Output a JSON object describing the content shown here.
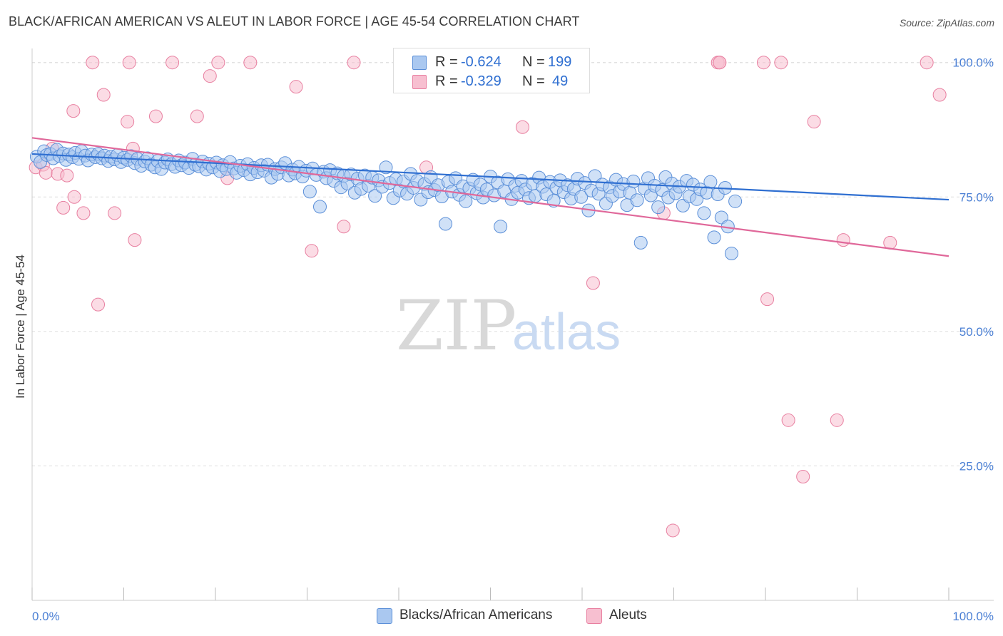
{
  "title": "BLACK/AFRICAN AMERICAN VS ALEUT IN LABOR FORCE | AGE 45-54 CORRELATION CHART",
  "source": "Source: ZipAtlas.com",
  "watermark": {
    "zip": "ZIP",
    "atlas": "atlas"
  },
  "colors": {
    "blue_fill": "#aac8f0",
    "blue_stroke": "#5b8fd8",
    "blue_line": "#2f6fd1",
    "pink_fill": "#f7bfd0",
    "pink_stroke": "#e87fa0",
    "pink_line": "#e0689a",
    "grid": "#dddddd",
    "tick_text": "#4a7fd4"
  },
  "legend_top": [
    {
      "r_label": "R =",
      "r_value": "-0.624",
      "n_label": "N =",
      "n_value": "199",
      "color": "blue"
    },
    {
      "r_label": "R =",
      "r_value": "-0.329",
      "n_label": "N =",
      "n_value": "49",
      "color": "pink"
    }
  ],
  "legend_bottom": [
    {
      "label": "Blacks/African Americans",
      "color": "blue"
    },
    {
      "label": "Aleuts",
      "color": "pink"
    }
  ],
  "chart_data": {
    "type": "scatter",
    "title": "BLACK/AFRICAN AMERICAN VS ALEUT IN LABOR FORCE | AGE 45-54 CORRELATION CHART",
    "xlabel": "",
    "ylabel": "In Labor Force | Age 45-54",
    "xlim": [
      0,
      100
    ],
    "ylim": [
      0,
      105
    ],
    "x_tick_labels": [
      "0.0%",
      "100.0%"
    ],
    "y_tick_labels": [
      "25.0%",
      "50.0%",
      "75.0%",
      "100.0%"
    ],
    "y_ticks": [
      25,
      50,
      75,
      100
    ],
    "grid": true,
    "legend_placement": "top-center and bottom",
    "series": [
      {
        "name": "Blacks/African Americans",
        "color": "blue",
        "r": -0.624,
        "n": 199,
        "trend": {
          "x": [
            0,
            100
          ],
          "y": [
            83.0,
            74.5
          ]
        },
        "points": [
          [
            0.5,
            82.5
          ],
          [
            0.9,
            81.5
          ],
          [
            1.3,
            83.5
          ],
          [
            1.6,
            82.8
          ],
          [
            2.0,
            83.0
          ],
          [
            2.3,
            82.2
          ],
          [
            2.7,
            83.8
          ],
          [
            3.0,
            82.6
          ],
          [
            3.4,
            83.1
          ],
          [
            3.7,
            81.9
          ],
          [
            4.0,
            82.9
          ],
          [
            4.4,
            82.4
          ],
          [
            4.7,
            83.2
          ],
          [
            5.1,
            82.1
          ],
          [
            5.4,
            83.5
          ],
          [
            5.8,
            82.7
          ],
          [
            6.1,
            81.8
          ],
          [
            6.5,
            82.9
          ],
          [
            6.9,
            82.4
          ],
          [
            7.2,
            83.0
          ],
          [
            7.6,
            82.2
          ],
          [
            7.9,
            82.7
          ],
          [
            8.3,
            81.7
          ],
          [
            8.6,
            82.5
          ],
          [
            9.0,
            82.0
          ],
          [
            9.3,
            82.8
          ],
          [
            9.7,
            81.5
          ],
          [
            10.0,
            82.3
          ],
          [
            10.4,
            81.9
          ],
          [
            10.8,
            82.6
          ],
          [
            11.2,
            81.3
          ],
          [
            11.5,
            82.1
          ],
          [
            11.9,
            80.8
          ],
          [
            12.3,
            81.6
          ],
          [
            12.6,
            82.2
          ],
          [
            13.0,
            81.0
          ],
          [
            13.4,
            80.5
          ],
          [
            13.7,
            81.7
          ],
          [
            14.1,
            80.2
          ],
          [
            14.5,
            81.4
          ],
          [
            14.8,
            82.0
          ],
          [
            15.2,
            81.1
          ],
          [
            15.6,
            80.6
          ],
          [
            16.0,
            81.8
          ],
          [
            16.3,
            80.9
          ],
          [
            16.7,
            81.4
          ],
          [
            17.1,
            80.4
          ],
          [
            17.5,
            82.1
          ],
          [
            17.8,
            81.0
          ],
          [
            18.2,
            80.7
          ],
          [
            18.6,
            81.6
          ],
          [
            19.0,
            80.1
          ],
          [
            19.3,
            81.2
          ],
          [
            19.7,
            80.5
          ],
          [
            20.1,
            81.4
          ],
          [
            20.5,
            79.8
          ],
          [
            20.8,
            80.9
          ],
          [
            21.2,
            80.2
          ],
          [
            21.6,
            81.5
          ],
          [
            22.0,
            80.3
          ],
          [
            22.3,
            79.5
          ],
          [
            22.7,
            80.8
          ],
          [
            23.1,
            80.0
          ],
          [
            23.5,
            81.1
          ],
          [
            23.8,
            79.2
          ],
          [
            24.2,
            80.4
          ],
          [
            24.6,
            79.6
          ],
          [
            25.0,
            80.9
          ],
          [
            25.3,
            79.9
          ],
          [
            25.7,
            81.0
          ],
          [
            26.1,
            78.6
          ],
          [
            26.5,
            80.2
          ],
          [
            26.8,
            79.3
          ],
          [
            27.2,
            80.5
          ],
          [
            27.6,
            81.3
          ],
          [
            28.0,
            79.0
          ],
          [
            28.4,
            80.1
          ],
          [
            28.7,
            79.4
          ],
          [
            29.1,
            80.6
          ],
          [
            29.5,
            78.8
          ],
          [
            29.9,
            79.9
          ],
          [
            30.3,
            76.0
          ],
          [
            30.6,
            80.3
          ],
          [
            31.0,
            79.1
          ],
          [
            31.4,
            73.2
          ],
          [
            31.8,
            79.7
          ],
          [
            32.1,
            78.5
          ],
          [
            32.5,
            80.0
          ],
          [
            32.9,
            78.0
          ],
          [
            33.3,
            79.4
          ],
          [
            33.7,
            76.8
          ],
          [
            34.0,
            78.9
          ],
          [
            34.4,
            77.5
          ],
          [
            34.8,
            79.2
          ],
          [
            35.2,
            75.8
          ],
          [
            35.5,
            78.4
          ],
          [
            35.9,
            76.5
          ],
          [
            36.3,
            79.0
          ],
          [
            36.7,
            77.1
          ],
          [
            37.1,
            78.6
          ],
          [
            37.4,
            75.2
          ],
          [
            37.8,
            78.1
          ],
          [
            38.2,
            76.9
          ],
          [
            38.6,
            80.5
          ],
          [
            39.0,
            77.6
          ],
          [
            39.4,
            74.8
          ],
          [
            39.7,
            78.3
          ],
          [
            40.1,
            76.2
          ],
          [
            40.5,
            77.9
          ],
          [
            40.9,
            75.6
          ],
          [
            41.3,
            79.3
          ],
          [
            41.6,
            76.7
          ],
          [
            42.0,
            78.0
          ],
          [
            42.4,
            74.5
          ],
          [
            42.8,
            77.4
          ],
          [
            43.2,
            75.9
          ],
          [
            43.5,
            78.7
          ],
          [
            43.9,
            76.3
          ],
          [
            44.3,
            77.2
          ],
          [
            44.7,
            75.1
          ],
          [
            45.1,
            70.0
          ],
          [
            45.4,
            77.8
          ],
          [
            45.8,
            76.0
          ],
          [
            46.2,
            78.5
          ],
          [
            46.6,
            75.4
          ],
          [
            47.0,
            77.0
          ],
          [
            47.3,
            74.2
          ],
          [
            47.7,
            76.6
          ],
          [
            48.1,
            78.2
          ],
          [
            48.5,
            75.7
          ],
          [
            48.9,
            77.3
          ],
          [
            49.2,
            74.9
          ],
          [
            49.6,
            76.4
          ],
          [
            50.0,
            78.8
          ],
          [
            50.4,
            75.3
          ],
          [
            50.8,
            77.7
          ],
          [
            51.1,
            69.5
          ],
          [
            51.5,
            76.1
          ],
          [
            51.9,
            78.3
          ],
          [
            52.3,
            74.6
          ],
          [
            52.7,
            77.1
          ],
          [
            53.0,
            75.8
          ],
          [
            53.4,
            78.0
          ],
          [
            53.8,
            76.4
          ],
          [
            54.2,
            74.8
          ],
          [
            54.6,
            77.5
          ],
          [
            54.9,
            75.2
          ],
          [
            55.3,
            78.6
          ],
          [
            55.7,
            76.9
          ],
          [
            56.1,
            75.5
          ],
          [
            56.5,
            77.8
          ],
          [
            56.9,
            74.3
          ],
          [
            57.2,
            76.7
          ],
          [
            57.6,
            78.1
          ],
          [
            58.0,
            75.9
          ],
          [
            58.4,
            77.2
          ],
          [
            58.8,
            74.7
          ],
          [
            59.1,
            76.5
          ],
          [
            59.5,
            78.4
          ],
          [
            59.9,
            75.0
          ],
          [
            60.3,
            77.6
          ],
          [
            60.7,
            72.5
          ],
          [
            61.0,
            76.2
          ],
          [
            61.4,
            78.9
          ],
          [
            61.8,
            75.6
          ],
          [
            62.2,
            77.3
          ],
          [
            62.6,
            73.8
          ],
          [
            63.0,
            76.8
          ],
          [
            63.3,
            75.2
          ],
          [
            63.7,
            78.2
          ],
          [
            64.1,
            76.0
          ],
          [
            64.5,
            77.4
          ],
          [
            64.9,
            73.5
          ],
          [
            65.2,
            75.8
          ],
          [
            65.6,
            77.9
          ],
          [
            66.0,
            74.4
          ],
          [
            66.4,
            66.5
          ],
          [
            66.8,
            76.6
          ],
          [
            67.2,
            78.5
          ],
          [
            67.5,
            75.3
          ],
          [
            67.9,
            77.1
          ],
          [
            68.3,
            73.1
          ],
          [
            68.7,
            76.3
          ],
          [
            69.1,
            78.7
          ],
          [
            69.4,
            74.9
          ],
          [
            69.8,
            77.5
          ],
          [
            70.2,
            75.7
          ],
          [
            70.6,
            76.9
          ],
          [
            71.0,
            73.4
          ],
          [
            71.4,
            78.0
          ],
          [
            71.7,
            75.1
          ],
          [
            72.1,
            77.3
          ],
          [
            72.5,
            74.6
          ],
          [
            72.9,
            76.4
          ],
          [
            73.3,
            72.0
          ],
          [
            73.6,
            75.8
          ],
          [
            74.0,
            77.8
          ],
          [
            74.4,
            67.5
          ],
          [
            74.8,
            75.5
          ],
          [
            75.2,
            71.2
          ],
          [
            75.6,
            76.7
          ],
          [
            75.9,
            69.5
          ],
          [
            76.3,
            64.5
          ],
          [
            76.7,
            74.2
          ]
        ]
      },
      {
        "name": "Aleuts",
        "color": "pink",
        "r": -0.329,
        "n": 49,
        "trend": {
          "x": [
            0,
            100
          ],
          "y": [
            86.0,
            64.0
          ]
        },
        "points": [
          [
            0.4,
            80.5
          ],
          [
            1.2,
            81.0
          ],
          [
            1.5,
            79.5
          ],
          [
            2.2,
            84.0
          ],
          [
            2.8,
            79.3
          ],
          [
            3.4,
            73.0
          ],
          [
            3.8,
            79.0
          ],
          [
            4.6,
            75.0
          ],
          [
            4.5,
            91.0
          ],
          [
            5.6,
            72.0
          ],
          [
            6.6,
            100.0
          ],
          [
            7.8,
            94.0
          ],
          [
            7.2,
            55.0
          ],
          [
            9.0,
            72.0
          ],
          [
            10.4,
            89.0
          ],
          [
            10.6,
            100.0
          ],
          [
            11.0,
            84.0
          ],
          [
            11.2,
            67.0
          ],
          [
            13.5,
            90.0
          ],
          [
            15.3,
            100.0
          ],
          [
            18.0,
            90.0
          ],
          [
            19.4,
            97.5
          ],
          [
            20.3,
            100.0
          ],
          [
            21.3,
            78.5
          ],
          [
            23.8,
            100.0
          ],
          [
            28.8,
            95.5
          ],
          [
            30.5,
            65.0
          ],
          [
            34.0,
            69.5
          ],
          [
            35.1,
            100.0
          ],
          [
            43.0,
            80.5
          ],
          [
            53.5,
            88.0
          ],
          [
            54.3,
            100.0
          ],
          [
            61.2,
            59.0
          ],
          [
            68.9,
            72.0
          ],
          [
            69.9,
            13.0
          ],
          [
            74.8,
            100.0
          ],
          [
            75.0,
            100.0
          ],
          [
            75.0,
            100.0
          ],
          [
            79.8,
            100.0
          ],
          [
            80.2,
            56.0
          ],
          [
            81.7,
            100.0
          ],
          [
            82.5,
            33.5
          ],
          [
            84.1,
            23.0
          ],
          [
            85.3,
            89.0
          ],
          [
            87.8,
            33.5
          ],
          [
            88.5,
            67.0
          ],
          [
            93.6,
            66.5
          ],
          [
            97.6,
            100.0
          ],
          [
            99.0,
            94.0
          ]
        ]
      }
    ]
  }
}
